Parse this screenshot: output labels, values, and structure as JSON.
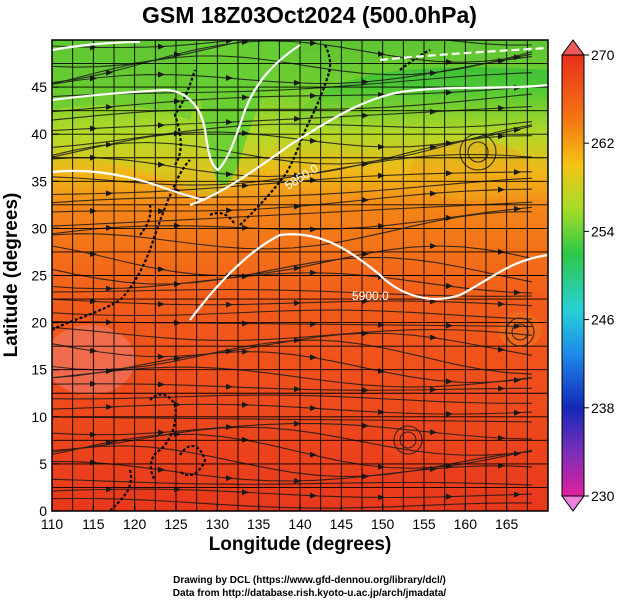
{
  "title": "GSM 18Z03Oct2024 (500.0hPa)",
  "xlabel": "Longitude (degrees)",
  "ylabel": "Latitude  (degrees)",
  "credits": [
    "Drawing by DCL (https://www.gfd-dennou.org/library/dcl/)",
    "Data from http://database.rish.kyoto-u.ac.jp/arch/jmadata/"
  ],
  "map": {
    "lon_range": [
      110,
      170
    ],
    "lat_range": [
      0,
      50
    ],
    "x_ticks": [
      "110",
      "115",
      "120",
      "125",
      "130",
      "135",
      "140",
      "145",
      "150",
      "155",
      "160",
      "165"
    ],
    "y_ticks": [
      "0",
      "5",
      "10",
      "15",
      "20",
      "25",
      "30",
      "35",
      "40",
      "45"
    ],
    "contour_labels": [
      "5900.0",
      "5850.0"
    ],
    "colorbar": {
      "ticks": [
        "270",
        "262",
        "254",
        "246",
        "238",
        "230"
      ],
      "min": 230,
      "max": 270,
      "colors": [
        "#e0209e",
        "#7a2eb8",
        "#1428b8",
        "#1e88e8",
        "#28d0d8",
        "#2ec848",
        "#a4dc28",
        "#f4c414",
        "#f47814",
        "#e8301c"
      ]
    }
  }
}
